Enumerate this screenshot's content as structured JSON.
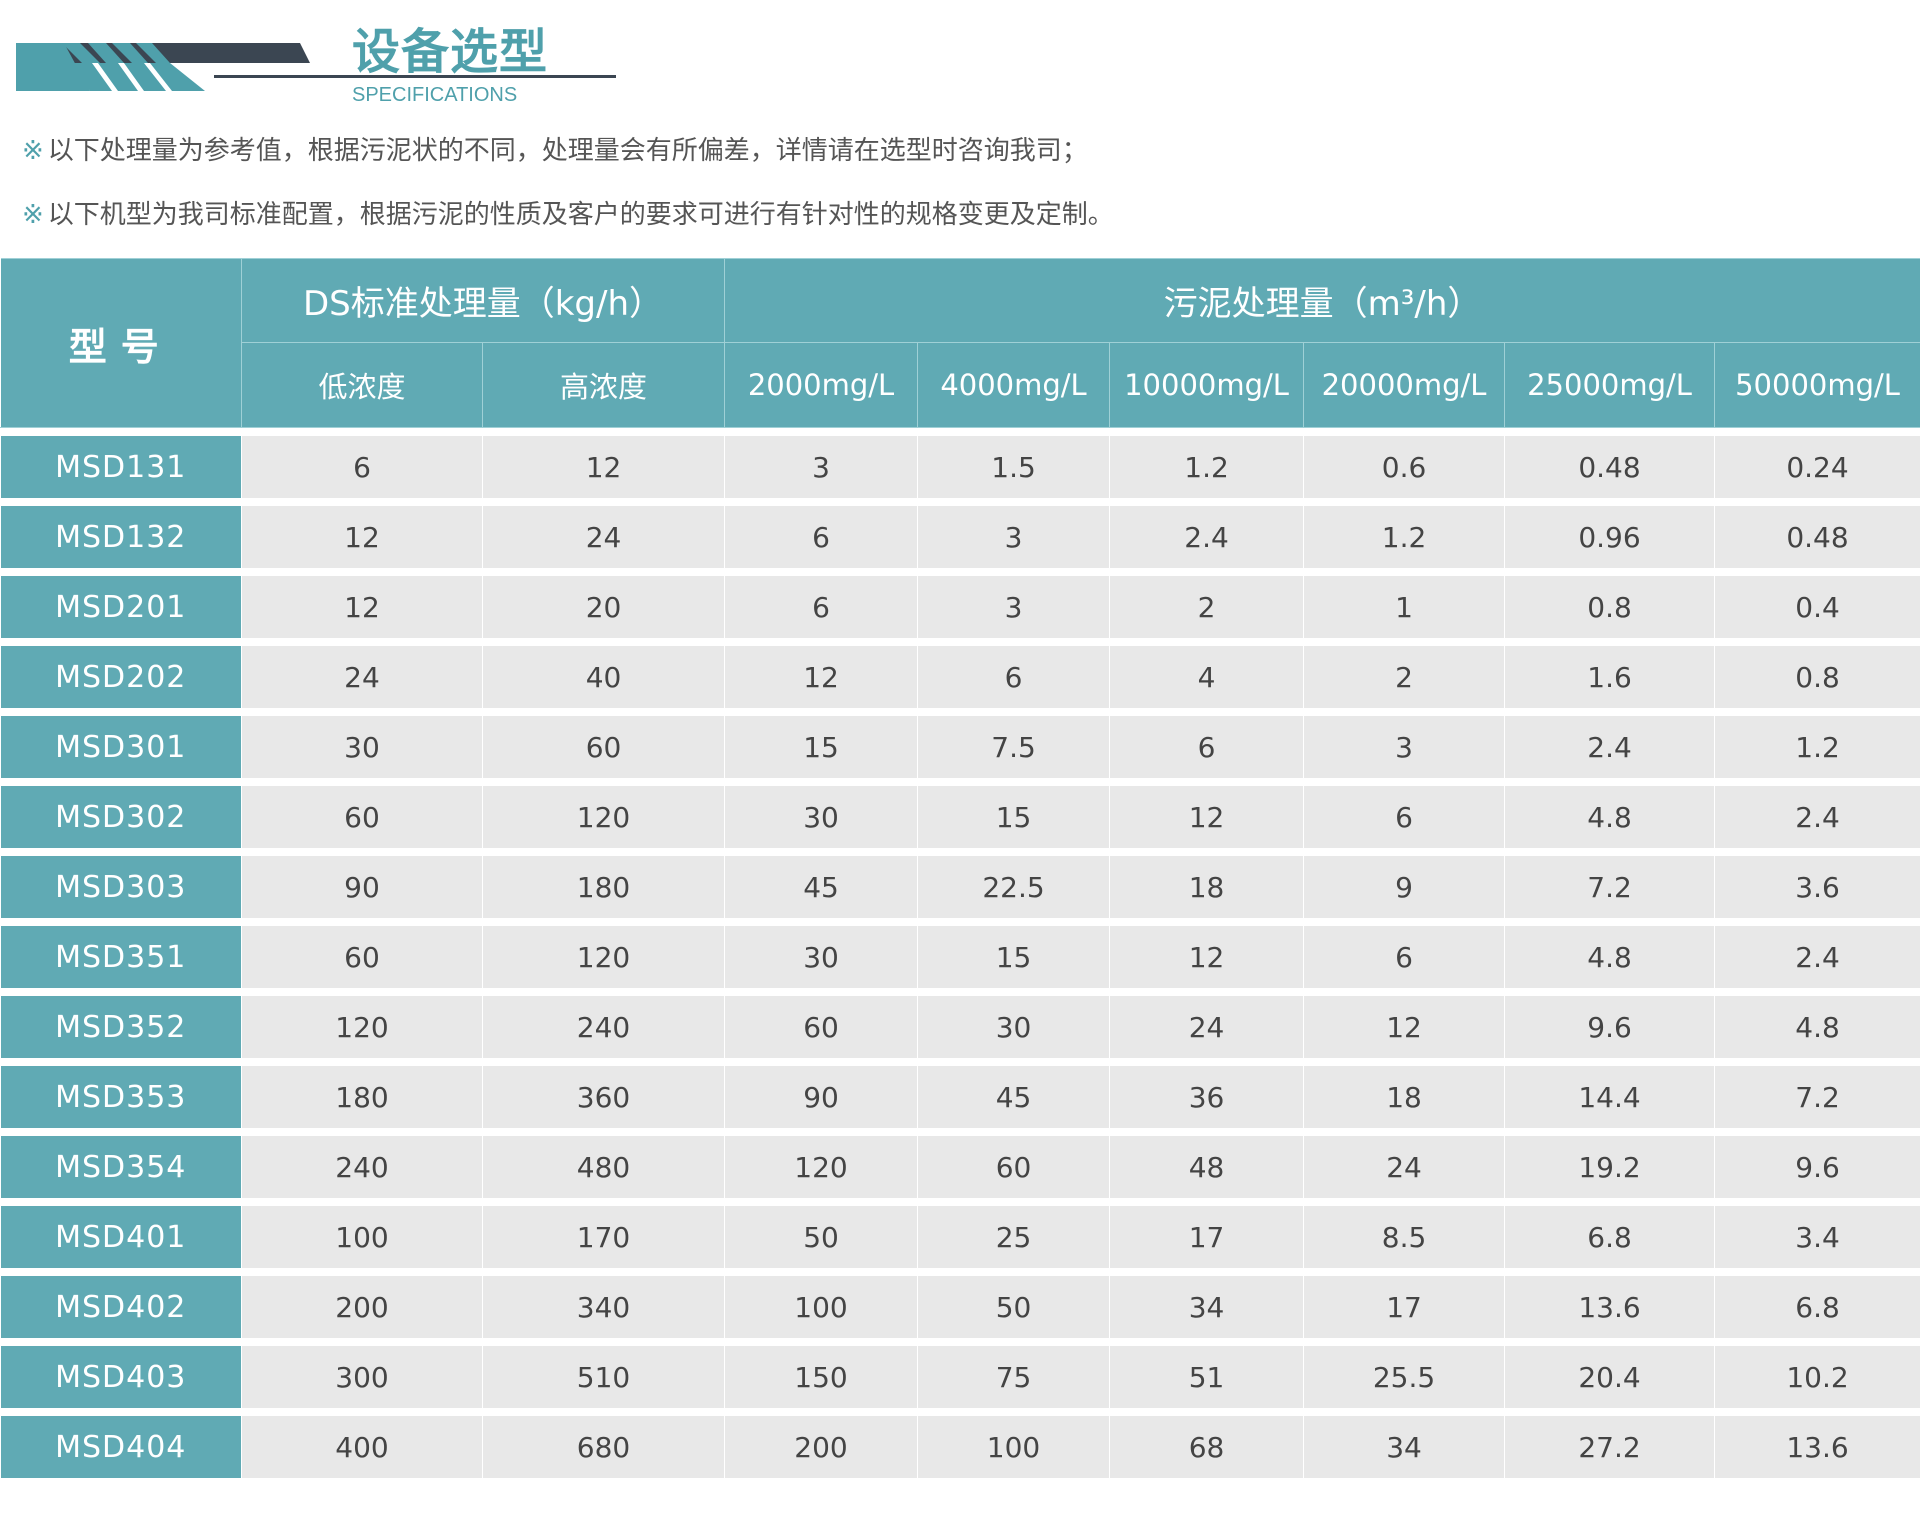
{
  "header": {
    "title": "设备选型",
    "subtitle": "SPECIFICATIONS",
    "brand_color": "#4fa0ab",
    "dark_color": "#3b4652"
  },
  "notes": [
    {
      "mark": "※",
      "text": "以下处理量为参考值，根据污泥状的不同，处理量会有所偏差，详情请在选型时咨询我司；"
    },
    {
      "mark": "※",
      "text": "以下机型为我司标准配置，根据污泥的性质及客户的要求可进行有针对性的规格变更及定制。"
    }
  ],
  "table": {
    "model_header": "型号",
    "ds_header": "DS标准处理量（kg/h）",
    "sludge_header": "污泥处理量（m³/h）",
    "sub_headers": [
      "低浓度",
      "高浓度",
      "2000mg/L",
      "4000mg/L",
      "10000mg/L",
      "20000mg/L",
      "25000mg/L",
      "50000mg/L"
    ],
    "rows": [
      [
        "MSD131",
        "6",
        "12",
        "3",
        "1.5",
        "1.2",
        "0.6",
        "0.48",
        "0.24"
      ],
      [
        "MSD132",
        "12",
        "24",
        "6",
        "3",
        "2.4",
        "1.2",
        "0.96",
        "0.48"
      ],
      [
        "MSD201",
        "12",
        "20",
        "6",
        "3",
        "2",
        "1",
        "0.8",
        "0.4"
      ],
      [
        "MSD202",
        "24",
        "40",
        "12",
        "6",
        "4",
        "2",
        "1.6",
        "0.8"
      ],
      [
        "MSD301",
        "30",
        "60",
        "15",
        "7.5",
        "6",
        "3",
        "2.4",
        "1.2"
      ],
      [
        "MSD302",
        "60",
        "120",
        "30",
        "15",
        "12",
        "6",
        "4.8",
        "2.4"
      ],
      [
        "MSD303",
        "90",
        "180",
        "45",
        "22.5",
        "18",
        "9",
        "7.2",
        "3.6"
      ],
      [
        "MSD351",
        "60",
        "120",
        "30",
        "15",
        "12",
        "6",
        "4.8",
        "2.4"
      ],
      [
        "MSD352",
        "120",
        "240",
        "60",
        "30",
        "24",
        "12",
        "9.6",
        "4.8"
      ],
      [
        "MSD353",
        "180",
        "360",
        "90",
        "45",
        "36",
        "18",
        "14.4",
        "7.2"
      ],
      [
        "MSD354",
        "240",
        "480",
        "120",
        "60",
        "48",
        "24",
        "19.2",
        "9.6"
      ],
      [
        "MSD401",
        "100",
        "170",
        "50",
        "25",
        "17",
        "8.5",
        "6.8",
        "3.4"
      ],
      [
        "MSD402",
        "200",
        "340",
        "100",
        "50",
        "34",
        "17",
        "13.6",
        "6.8"
      ],
      [
        "MSD403",
        "300",
        "510",
        "150",
        "75",
        "51",
        "25.5",
        "20.4",
        "10.2"
      ],
      [
        "MSD404",
        "400",
        "680",
        "200",
        "100",
        "68",
        "34",
        "27.2",
        "13.6"
      ]
    ]
  }
}
